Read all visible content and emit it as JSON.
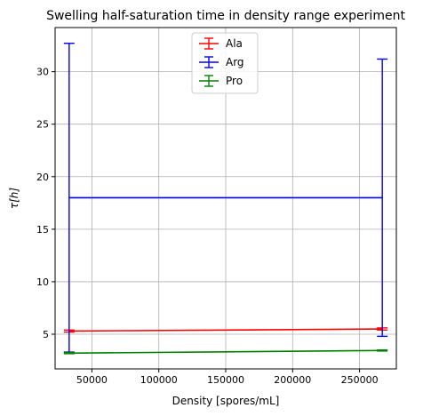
{
  "chart_data": {
    "type": "line",
    "title": "Swelling half-saturation time in density range experiment",
    "xlabel": "Density [spores/mL]",
    "ylabel": "τ[h]",
    "xlim": [
      22500,
      277500
    ],
    "ylim": [
      1.7,
      34.2
    ],
    "xticks": [
      50000,
      100000,
      150000,
      200000,
      250000
    ],
    "yticks": [
      5,
      10,
      15,
      20,
      25,
      30
    ],
    "grid": true,
    "legend_position": "top-center",
    "errorbar": true,
    "series": [
      {
        "name": "Ala",
        "color": "#ff0000",
        "x": [
          33000,
          267000
        ],
        "y": [
          5.3,
          5.5
        ],
        "yerr": [
          0.1,
          0.1
        ]
      },
      {
        "name": "Arg",
        "color": "#0000ff",
        "x": [
          33000,
          267000
        ],
        "y": [
          18.0,
          18.0
        ],
        "yerr": [
          14.7,
          13.2
        ]
      },
      {
        "name": "Pro",
        "color": "#008000",
        "x": [
          33000,
          267000
        ],
        "y": [
          3.2,
          3.45
        ],
        "yerr": [
          0.05,
          0.05
        ]
      }
    ]
  }
}
